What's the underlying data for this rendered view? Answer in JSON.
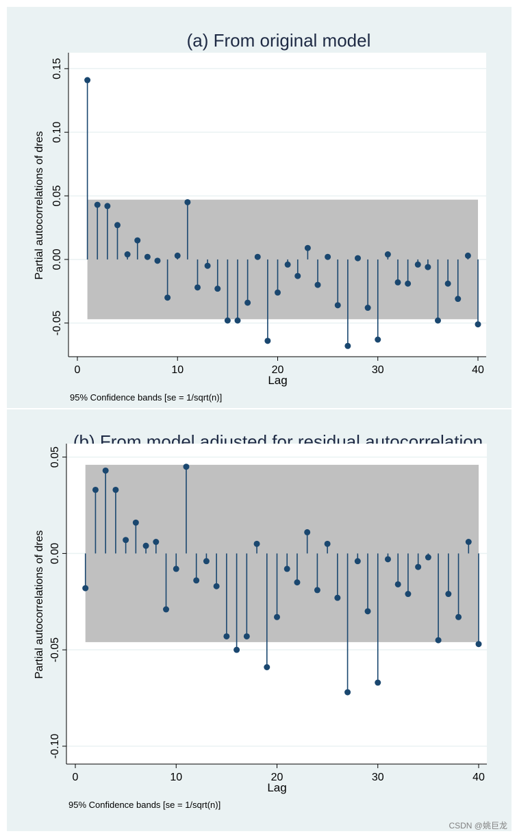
{
  "watermark": "CSDN @姚巨龙",
  "colors": {
    "background": "#eaf2f3",
    "plot_bg": "#ffffff",
    "band": "#c0c0c0",
    "stem": "#1a476f",
    "grid": "#eaf2f3",
    "text": "#1e2a44"
  },
  "chart_data": [
    {
      "type": "stem",
      "title": "(a) From original model",
      "xlabel": "Lag",
      "ylabel": "Partial autocorrelations of dres",
      "note": "95% Confidence bands [se = 1/sqrt(n)]",
      "xlim": [
        0,
        40
      ],
      "ylim": [
        -0.07,
        0.155
      ],
      "xticks": [
        "0",
        "10",
        "20",
        "30",
        "40"
      ],
      "yticks": [
        "-0.05",
        "0.00",
        "0.05",
        "0.10",
        "0.15"
      ],
      "band": 0.047,
      "lags": [
        1,
        2,
        3,
        4,
        5,
        6,
        7,
        8,
        9,
        10,
        11,
        12,
        13,
        14,
        15,
        16,
        17,
        18,
        19,
        20,
        21,
        22,
        23,
        24,
        25,
        26,
        27,
        28,
        29,
        30,
        31,
        32,
        33,
        34,
        35,
        36,
        37,
        38,
        39,
        40
      ],
      "values": [
        0.141,
        0.043,
        0.042,
        0.027,
        0.004,
        0.015,
        0.002,
        -0.001,
        -0.03,
        0.003,
        0.045,
        -0.022,
        -0.005,
        -0.023,
        -0.048,
        -0.048,
        -0.034,
        0.002,
        -0.064,
        -0.026,
        -0.004,
        -0.013,
        0.009,
        -0.02,
        0.002,
        -0.036,
        -0.068,
        0.001,
        -0.038,
        -0.063,
        0.004,
        -0.018,
        -0.019,
        -0.004,
        -0.006,
        -0.048,
        -0.019,
        -0.031,
        0.003,
        -0.051
      ]
    },
    {
      "type": "stem",
      "title": "(b) From model adjusted for residual autocorrelation",
      "xlabel": "Lag",
      "ylabel": "Partial autocorrelations of dres",
      "note": "95% Confidence bands [se = 1/sqrt(n)]",
      "xlim": [
        0,
        40
      ],
      "ylim": [
        -0.105,
        0.052
      ],
      "xticks": [
        "0",
        "10",
        "20",
        "30",
        "40"
      ],
      "yticks": [
        "-0.10",
        "-0.05",
        "0.00",
        "0.05"
      ],
      "band": 0.046,
      "lags": [
        1,
        2,
        3,
        4,
        5,
        6,
        7,
        8,
        9,
        10,
        11,
        12,
        13,
        14,
        15,
        16,
        17,
        18,
        19,
        20,
        21,
        22,
        23,
        24,
        25,
        26,
        27,
        28,
        29,
        30,
        31,
        32,
        33,
        34,
        35,
        36,
        37,
        38,
        39,
        40
      ],
      "values": [
        -0.018,
        0.033,
        0.043,
        0.033,
        0.007,
        0.016,
        0.004,
        0.006,
        -0.029,
        -0.008,
        0.045,
        -0.014,
        -0.004,
        -0.017,
        -0.043,
        -0.05,
        -0.043,
        0.005,
        -0.059,
        -0.033,
        -0.008,
        -0.015,
        0.011,
        -0.019,
        0.005,
        -0.023,
        -0.072,
        -0.004,
        -0.03,
        -0.067,
        -0.003,
        -0.016,
        -0.021,
        -0.007,
        -0.002,
        -0.045,
        -0.021,
        -0.033,
        0.006,
        -0.047
      ]
    }
  ]
}
